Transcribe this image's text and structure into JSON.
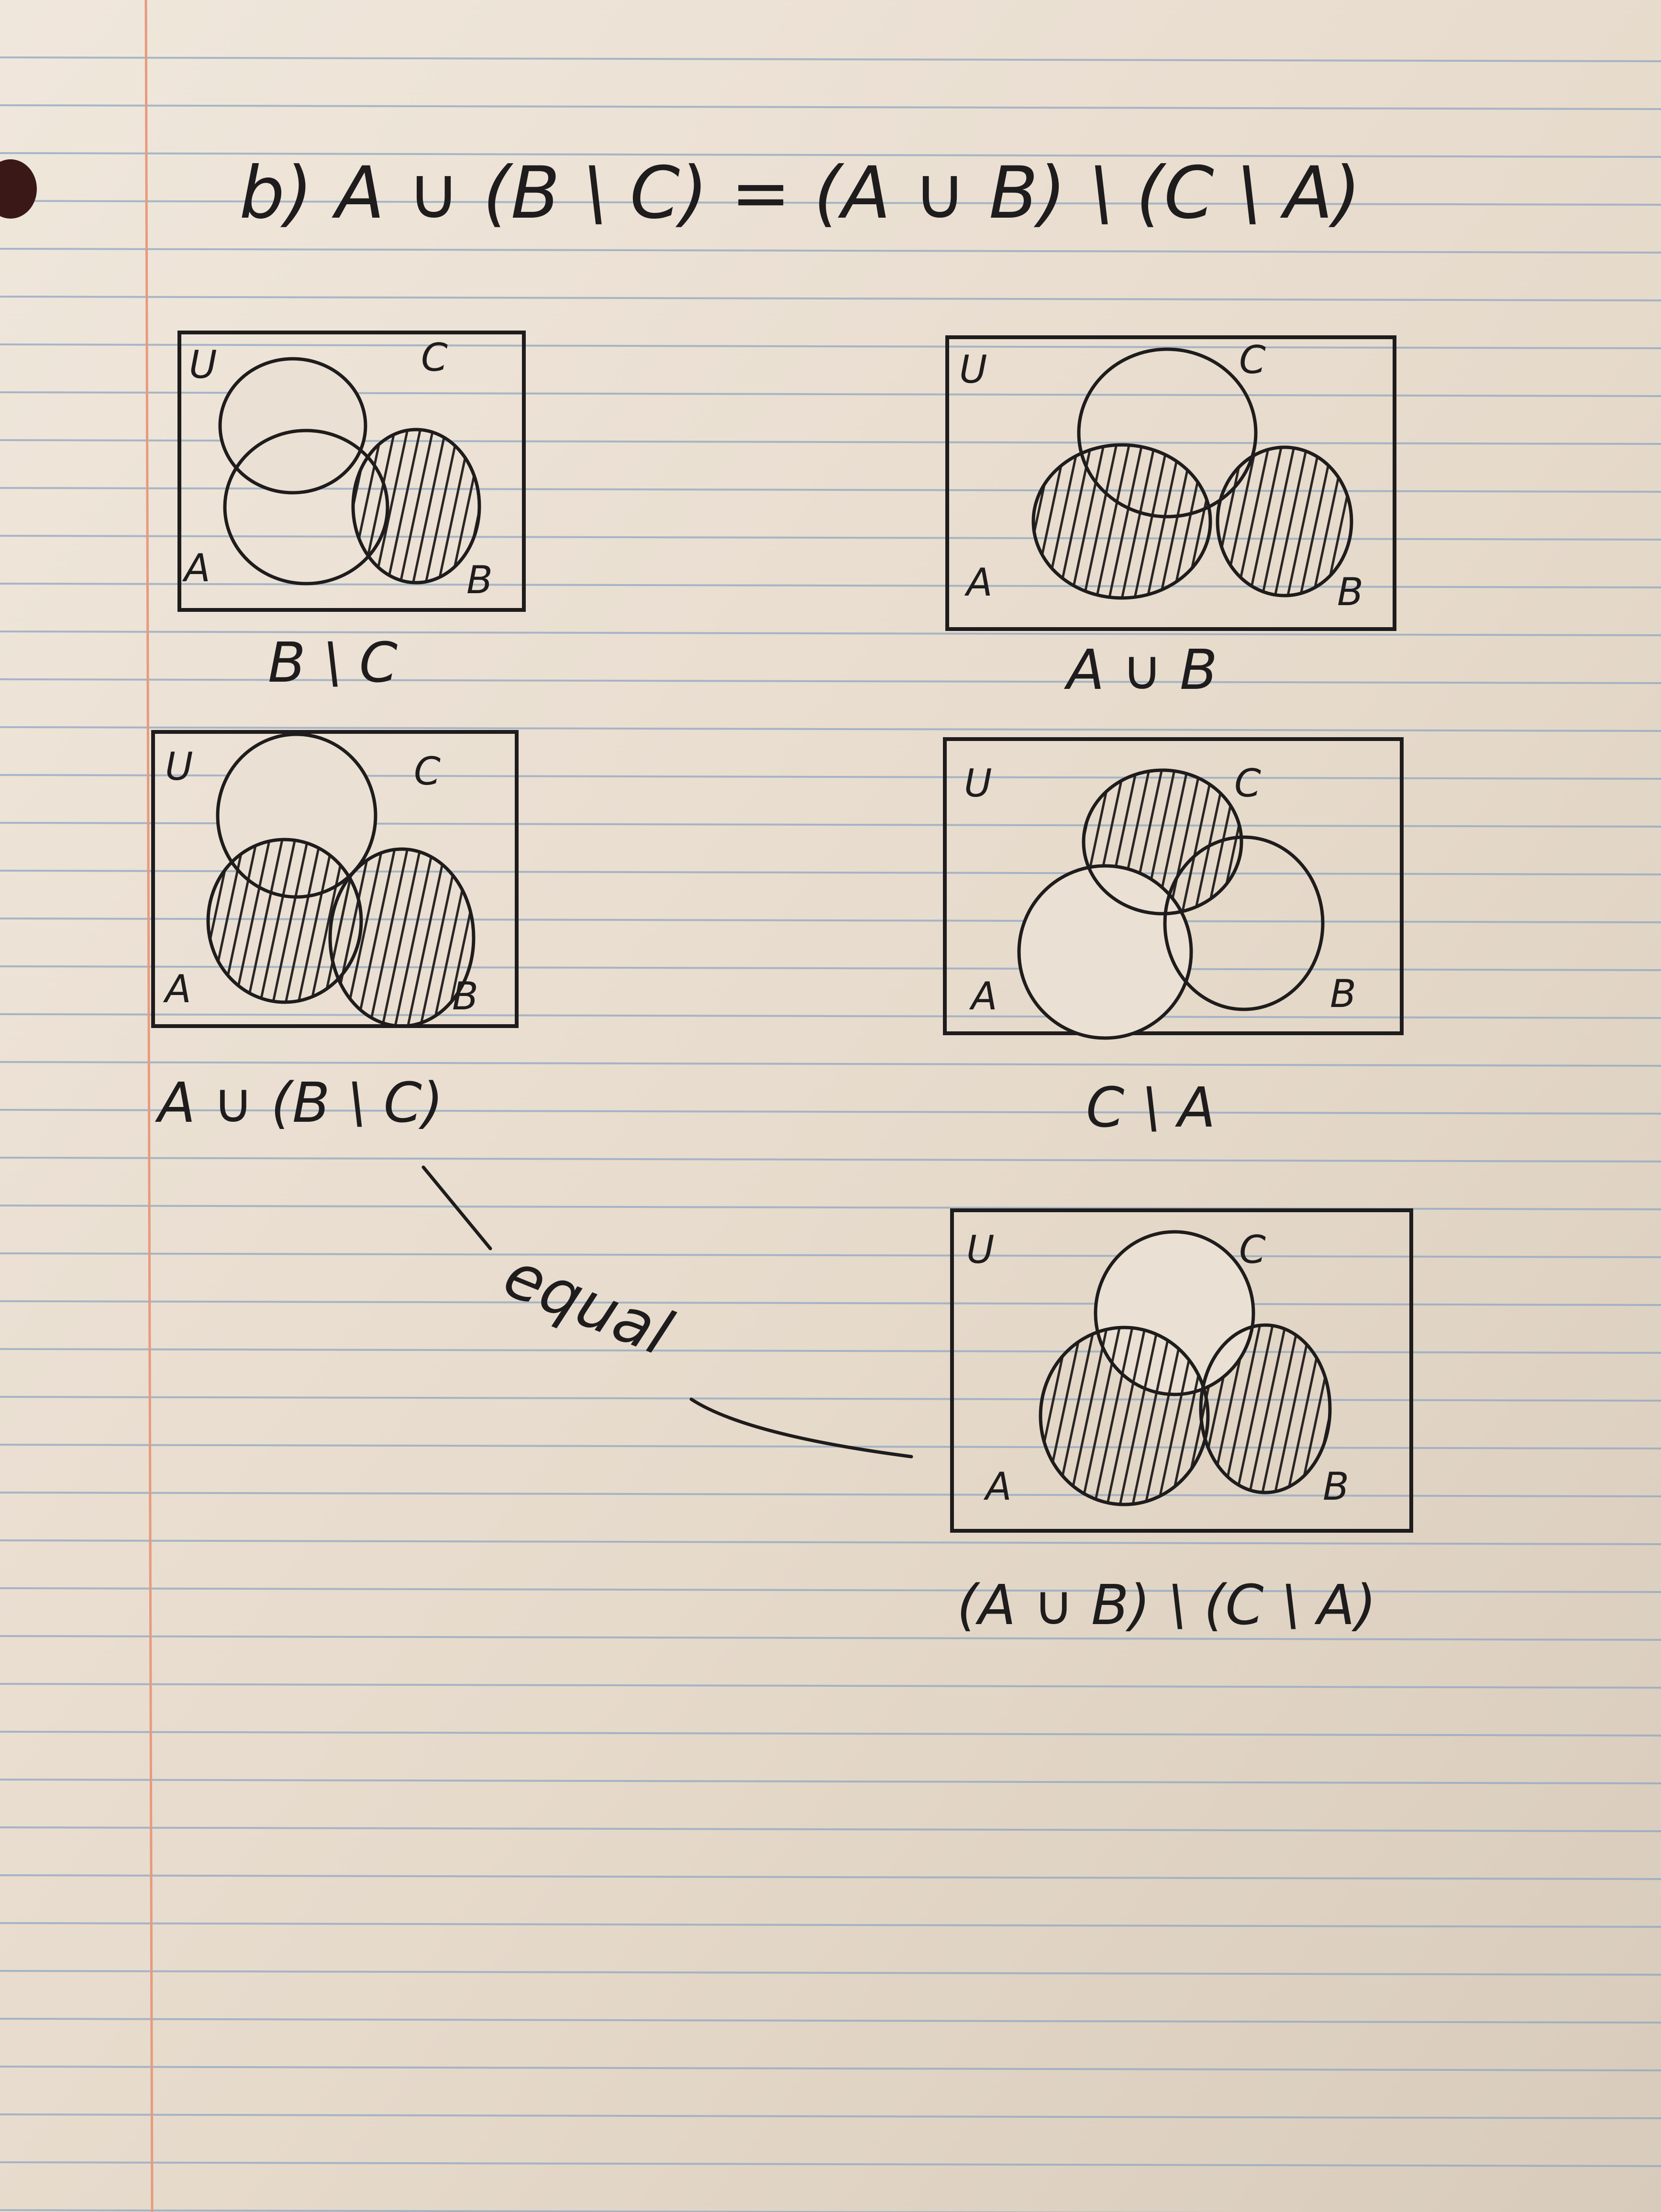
{
  "title": "b) A ∪ (B \\ C) = (A ∪ B) \\ (C \\ A)",
  "diagrams": [
    {
      "id": "b-minus-c",
      "caption": "B \\ C",
      "labels": {
        "universe": "U",
        "a": "A",
        "b": "B",
        "c": "C"
      },
      "shaded": [
        "B \\ C"
      ]
    },
    {
      "id": "a-union-b",
      "caption": "A ∪ B",
      "labels": {
        "universe": "U",
        "a": "A",
        "b": "B",
        "c": "C"
      },
      "shaded": [
        "A",
        "B"
      ]
    },
    {
      "id": "a-union-b-minus-c",
      "caption": "A ∪ (B \\ C)",
      "labels": {
        "universe": "U",
        "a": "A",
        "b": "B",
        "c": "C"
      },
      "shaded": [
        "A",
        "B \\ C"
      ]
    },
    {
      "id": "c-minus-a",
      "caption": "C \\ A",
      "labels": {
        "universe": "U",
        "a": "A",
        "b": "B",
        "c": "C"
      },
      "shaded": [
        "C \\ A"
      ]
    },
    {
      "id": "result",
      "caption": "(A ∪ B) \\ (C \\ A)",
      "labels": {
        "universe": "U",
        "a": "A",
        "b": "B",
        "c": "C"
      },
      "shaded": [
        "(A ∪ B) \\ (C \\ A)"
      ]
    }
  ],
  "annotation": "equal",
  "colors": {
    "paper": "#e8ddd0",
    "rule_line": "#8ea7c2",
    "margin_line": "#e79a7e",
    "ink": "#1e1c1c"
  }
}
